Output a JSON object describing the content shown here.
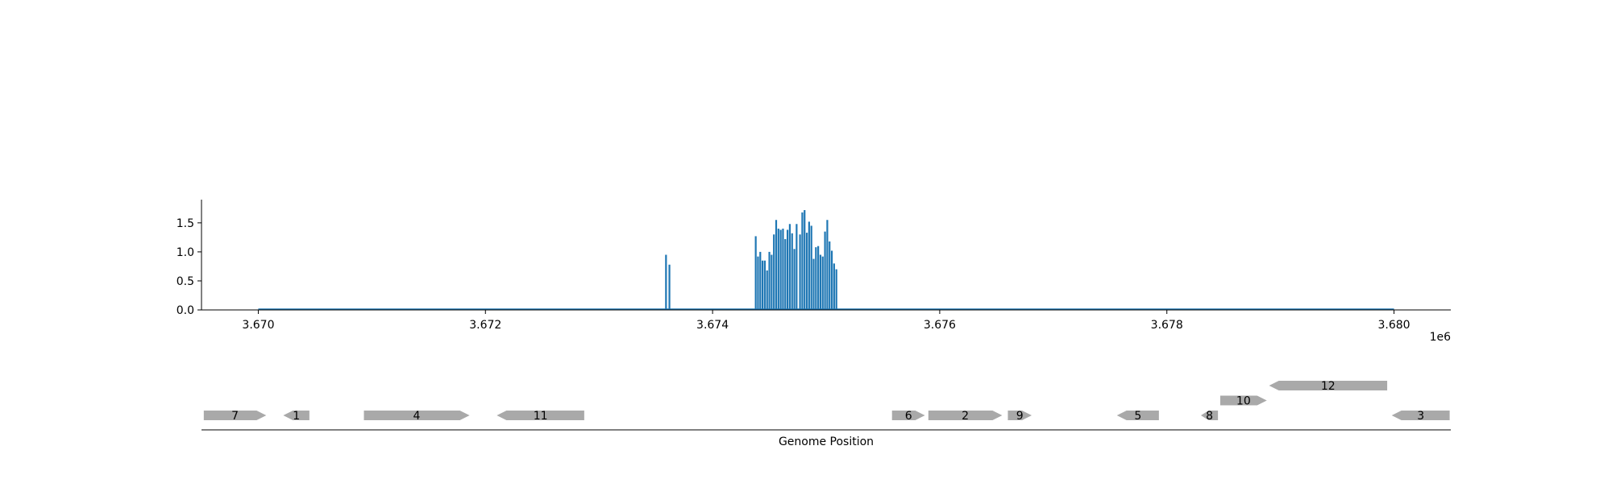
{
  "chart_data": [
    {
      "type": "bar",
      "title": "",
      "xlabel": "",
      "ylabel": "",
      "x_offset_label": "1e6",
      "xlim": [
        3669500,
        3680500
      ],
      "ylim": [
        0,
        1.9
      ],
      "xticks": [
        3670000,
        3672000,
        3674000,
        3676000,
        3678000,
        3680000
      ],
      "xtick_labels": [
        "3.670",
        "3.672",
        "3.674",
        "3.676",
        "3.678",
        "3.680"
      ],
      "yticks": [
        0,
        0.5,
        1.0,
        1.5
      ],
      "ytick_labels": [
        "0.0",
        "0.5",
        "1.0",
        "1.5"
      ],
      "grid": false,
      "baseline": {
        "x_start": 3670000,
        "x_end": 3680000,
        "value": 0.0
      },
      "bar_width": 10,
      "color": "#1f77b4",
      "bars": {
        "x": [
          3673590,
          3673620,
          3674380,
          3674400,
          3674420,
          3674440,
          3674460,
          3674480,
          3674500,
          3674520,
          3674540,
          3674560,
          3674580,
          3674600,
          3674620,
          3674640,
          3674660,
          3674680,
          3674700,
          3674720,
          3674740,
          3674770,
          3674790,
          3674810,
          3674830,
          3674850,
          3674870,
          3674890,
          3674910,
          3674930,
          3674950,
          3674970,
          3674990,
          3675010,
          3675030,
          3675050,
          3675070,
          3675090,
          3675110,
          3675130
        ],
        "y": [
          0.95,
          0.78,
          1.27,
          0.92,
          1.0,
          0.85,
          0.85,
          0.68,
          1.0,
          0.95,
          1.3,
          1.55,
          1.4,
          1.38,
          1.4,
          1.22,
          1.38,
          1.48,
          1.32,
          1.05,
          1.48,
          1.3,
          1.68,
          1.72,
          1.33,
          1.52,
          1.45,
          0.88,
          1.08,
          1.1,
          0.95,
          0.92,
          1.35,
          1.55,
          1.18,
          1.02,
          0.8,
          0.7,
          0.0,
          0.0
        ]
      }
    },
    {
      "type": "gene-track",
      "xlabel": "Genome Position",
      "xlim": [
        3669500,
        3680500
      ],
      "color": "#a9a9a9",
      "genes": [
        {
          "label": "7",
          "start": 3669520,
          "end": 3670070,
          "strand": "+",
          "row": 0
        },
        {
          "label": "1",
          "start": 3670220,
          "end": 3670450,
          "strand": "-",
          "row": 0
        },
        {
          "label": "4",
          "start": 3670930,
          "end": 3671860,
          "strand": "+",
          "row": 0
        },
        {
          "label": "11",
          "start": 3672100,
          "end": 3672870,
          "strand": "-",
          "row": 0
        },
        {
          "label": "6",
          "start": 3675580,
          "end": 3675870,
          "strand": "+",
          "row": 0
        },
        {
          "label": "2",
          "start": 3675900,
          "end": 3676550,
          "strand": "+",
          "row": 0
        },
        {
          "label": "9",
          "start": 3676600,
          "end": 3676810,
          "strand": "+",
          "row": 0
        },
        {
          "label": "5",
          "start": 3677560,
          "end": 3677930,
          "strand": "-",
          "row": 0
        },
        {
          "label": "8",
          "start": 3678300,
          "end": 3678450,
          "strand": "-",
          "row": 0
        },
        {
          "label": "10",
          "start": 3678470,
          "end": 3678880,
          "strand": "+",
          "row": 1
        },
        {
          "label": "12",
          "start": 3678900,
          "end": 3679940,
          "strand": "-",
          "row": 2
        },
        {
          "label": "3",
          "start": 3679980,
          "end": 3680490,
          "strand": "-",
          "row": 0
        }
      ]
    }
  ]
}
